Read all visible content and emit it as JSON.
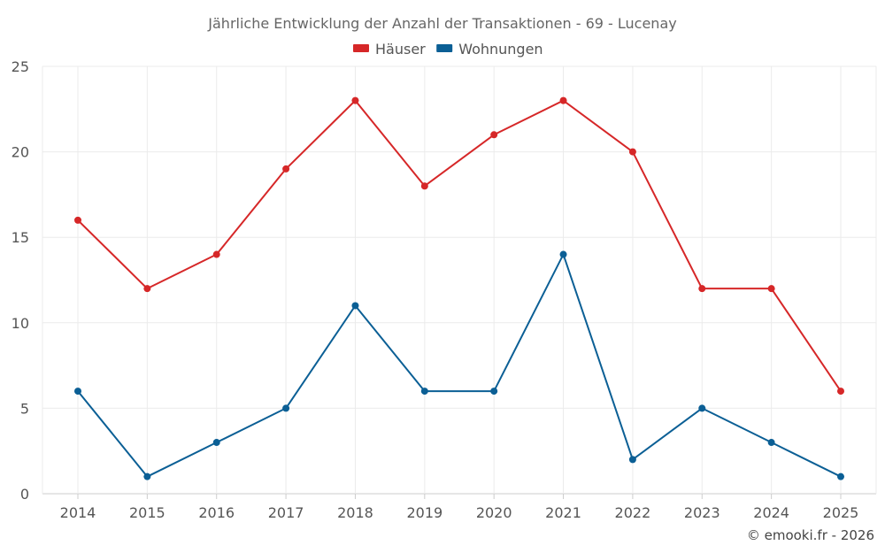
{
  "chart_data": {
    "type": "line",
    "title": "Jährliche Entwicklung der Anzahl der Transaktionen - 69 - Lucenay",
    "categories": [
      "2014",
      "2015",
      "2016",
      "2017",
      "2018",
      "2019",
      "2020",
      "2021",
      "2022",
      "2023",
      "2024",
      "2025"
    ],
    "series": [
      {
        "name": "Häuser",
        "color": "#d62728",
        "values": [
          16,
          12,
          14,
          19,
          23,
          18,
          21,
          23,
          20,
          12,
          12,
          6
        ]
      },
      {
        "name": "Wohnungen",
        "color": "#0b5f95",
        "values": [
          6,
          1,
          3,
          5,
          11,
          6,
          6,
          14,
          2,
          5,
          3,
          1
        ]
      }
    ],
    "ylim": [
      0,
      25
    ],
    "yticks": [
      0,
      5,
      10,
      15,
      20,
      25
    ],
    "grid": true,
    "legend": "top-center",
    "xlabel": "",
    "ylabel": ""
  },
  "credit": "© emooki.fr - 2026"
}
